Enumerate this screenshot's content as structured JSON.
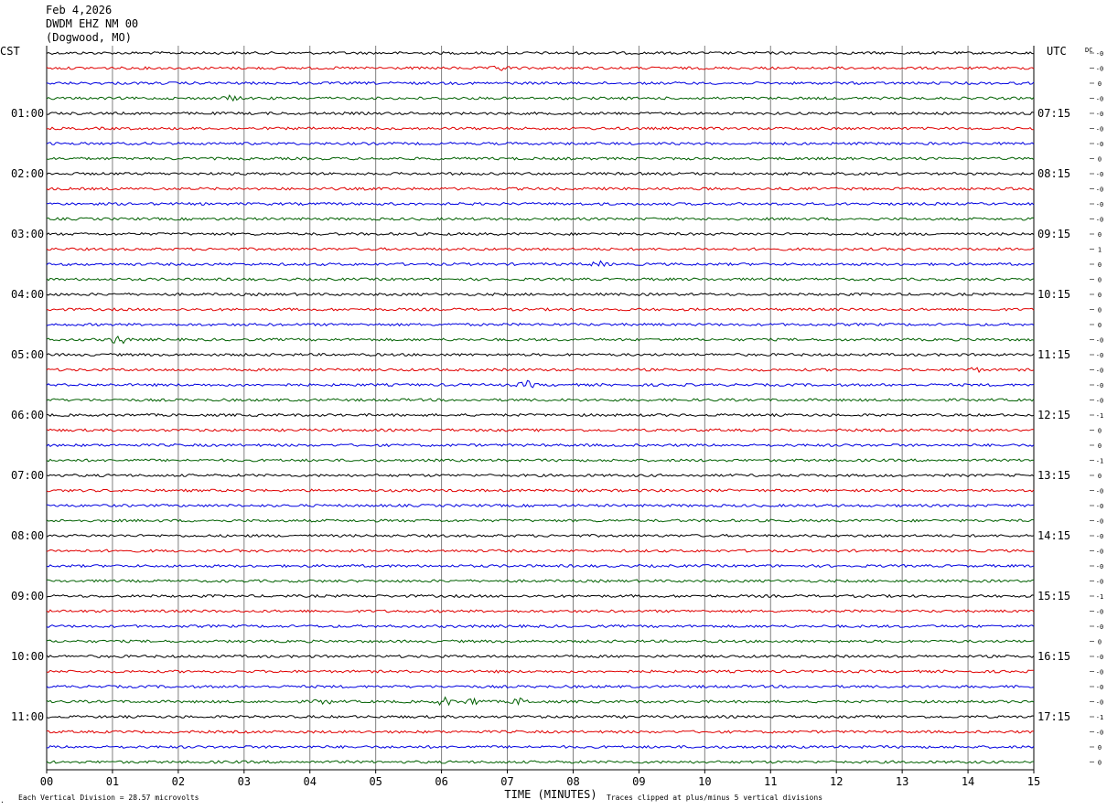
{
  "header": {
    "date": "Feb 4,2026",
    "station": "DWDM EHZ NM 00",
    "location": "(Dogwood, MO)"
  },
  "chart_data": {
    "type": "line",
    "title": "Feb 4,2026",
    "subtitle": "DWDM EHZ NM 00 (Dogwood, MO)",
    "xlabel": "TIME (MINUTES)",
    "xlim": [
      0,
      15
    ],
    "x_ticks": [
      "00",
      "01",
      "02",
      "03",
      "04",
      "05",
      "06",
      "07",
      "08",
      "09",
      "10",
      "11",
      "12",
      "13",
      "14",
      "15"
    ],
    "left_axis_label": "CST",
    "right_axis_label": "UTC",
    "right_column_label": "DC",
    "hour_labels_cst": [
      "01:00",
      "02:00",
      "03:00",
      "04:00",
      "05:00",
      "06:00",
      "07:00",
      "08:00",
      "09:00",
      "10:00",
      "11:00"
    ],
    "hour_labels_utc": [
      "07:15",
      "08:15",
      "09:15",
      "10:15",
      "11:15",
      "12:15",
      "13:15",
      "14:15",
      "15:15",
      "16:15",
      "17:15"
    ],
    "trace_colors": [
      "#000000",
      "#e00000",
      "#0000e0",
      "#006000"
    ],
    "trace_count": 48,
    "dc_offsets": [
      "-0",
      "-0",
      "0",
      "-0",
      "-0",
      "-0",
      "-0",
      "0",
      "-0",
      "-0",
      "-0",
      "-0",
      "0",
      "1",
      "0",
      "0",
      "0",
      "0",
      "0",
      "-0",
      "-0",
      "-0",
      "-0",
      "-0",
      "-1",
      "0",
      "0",
      "-1",
      "0",
      "-0",
      "-0",
      "-0",
      "-0",
      "-0",
      "-0",
      "-0",
      "-1",
      "-0",
      "-0",
      "0",
      "-0",
      "-0",
      "-0",
      "-0",
      "-1",
      "-0",
      "0",
      "0"
    ],
    "events": [
      {
        "trace": 1,
        "minute": 6.9,
        "amplitude": 2.5
      },
      {
        "trace": 3,
        "minute": 2.8,
        "amplitude": 2.5
      },
      {
        "trace": 14,
        "minute": 8.4,
        "amplitude": 2.5
      },
      {
        "trace": 19,
        "minute": 1.1,
        "amplitude": 5
      },
      {
        "trace": 21,
        "minute": 14.1,
        "amplitude": 2
      },
      {
        "trace": 22,
        "minute": 7.3,
        "amplitude": 3.5
      },
      {
        "trace": 43,
        "minute": 4.2,
        "amplitude": 2.5
      },
      {
        "trace": 43,
        "minute": 6.05,
        "amplitude": 4
      },
      {
        "trace": 43,
        "minute": 6.5,
        "amplitude": 4
      },
      {
        "trace": 43,
        "minute": 7.2,
        "amplitude": 3.5
      }
    ],
    "footer_left": "Each Vertical Division =   28.57 microvolts",
    "footer_right": "Traces clipped at plus/minus 5 vertical divisions",
    "grid": true
  }
}
